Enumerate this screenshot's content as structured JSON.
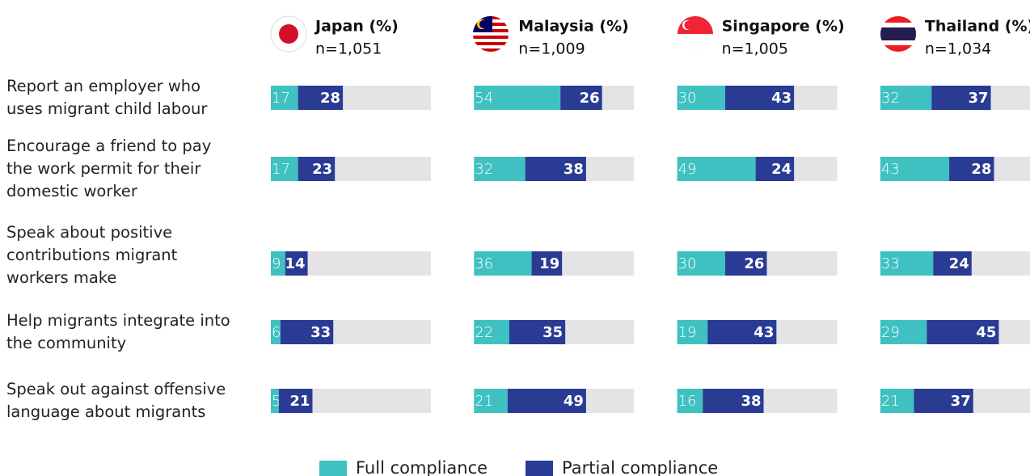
{
  "chart_data": {
    "type": "bar",
    "stacked": true,
    "orientation": "horizontal",
    "xlim": [
      0,
      100
    ],
    "legend": "bottom",
    "categories": [
      "Report an employer who uses migrant child labour",
      "Encourage a friend to pay the work permit for their domestic worker",
      "Speak about positive contributions migrant workers make",
      "Help migrants integrate into the community",
      "Speak out against offensive language about migrants"
    ],
    "series": [
      {
        "name": "Full compliance",
        "color": "#40c1c1"
      },
      {
        "name": "Partial compliance",
        "color": "#2a3b94"
      }
    ],
    "panels": [
      {
        "title": "Japan (%)",
        "subtitle": "n=1,051",
        "values": [
          [
            17,
            17,
            9,
            6,
            5
          ],
          [
            28,
            23,
            14,
            33,
            21
          ]
        ]
      },
      {
        "title": "Malaysia (%)",
        "subtitle": "n=1,009",
        "values": [
          [
            54,
            32,
            36,
            22,
            21
          ],
          [
            26,
            38,
            19,
            35,
            49
          ]
        ]
      },
      {
        "title": "Singapore (%)",
        "subtitle": "n=1,005",
        "values": [
          [
            30,
            49,
            30,
            19,
            16
          ],
          [
            43,
            24,
            26,
            43,
            38
          ]
        ]
      },
      {
        "title": "Thailand (%)",
        "subtitle": "n=1,034",
        "values": [
          [
            32,
            43,
            33,
            29,
            21
          ],
          [
            37,
            28,
            24,
            45,
            37
          ]
        ]
      }
    ]
  }
}
